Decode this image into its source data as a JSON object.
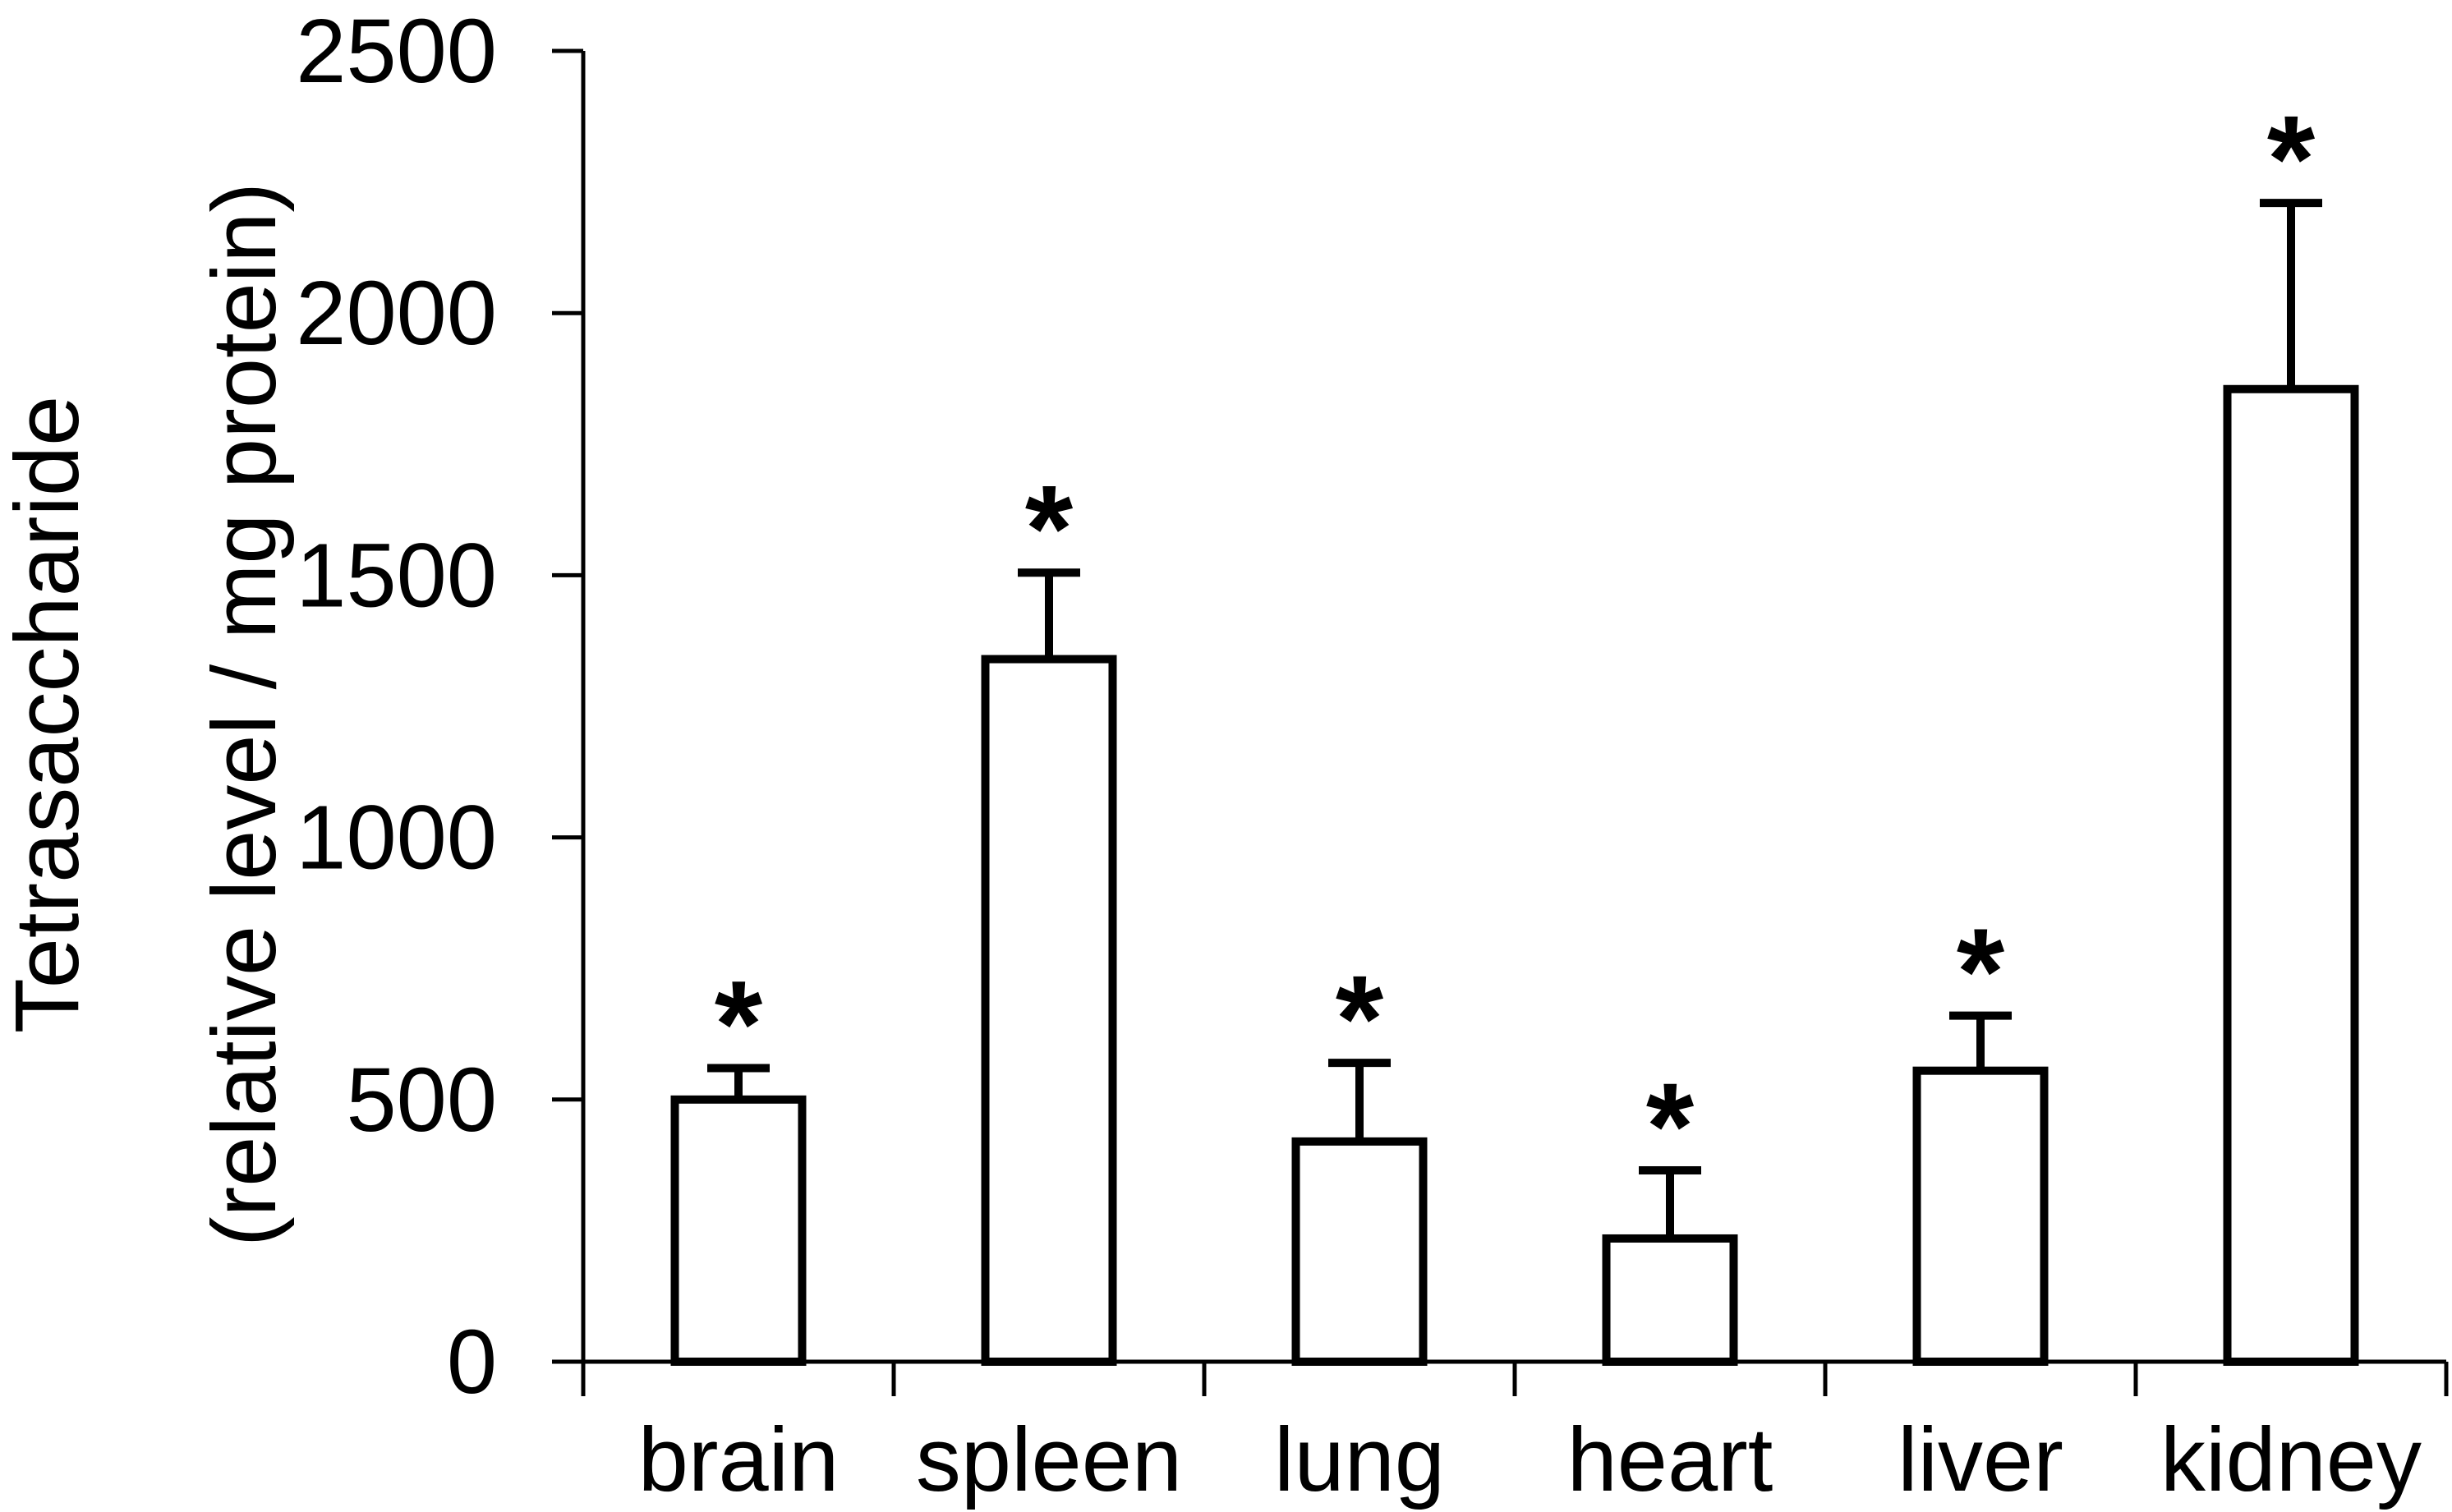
{
  "chart_data": {
    "type": "bar",
    "categories": [
      "brain",
      "spleen",
      "lung",
      "heart",
      "liver",
      "kidney"
    ],
    "series": [
      {
        "values": [
          500,
          1340,
          420,
          235,
          555,
          1855
        ],
        "errors": [
          60,
          165,
          150,
          130,
          105,
          355
        ]
      }
    ],
    "significance": [
      "*",
      "*",
      "*",
      "*",
      "*",
      "*"
    ],
    "ylabel_line1": "Tetrasaccharide",
    "ylabel_line2": "(relative level / mg protein)",
    "xlabel": "",
    "ylim": [
      0,
      2500
    ],
    "yticks": [
      0,
      500,
      1000,
      1500,
      2000,
      2500
    ],
    "grid": false,
    "bar_fill": "#ffffff",
    "bar_stroke": "#000000"
  }
}
